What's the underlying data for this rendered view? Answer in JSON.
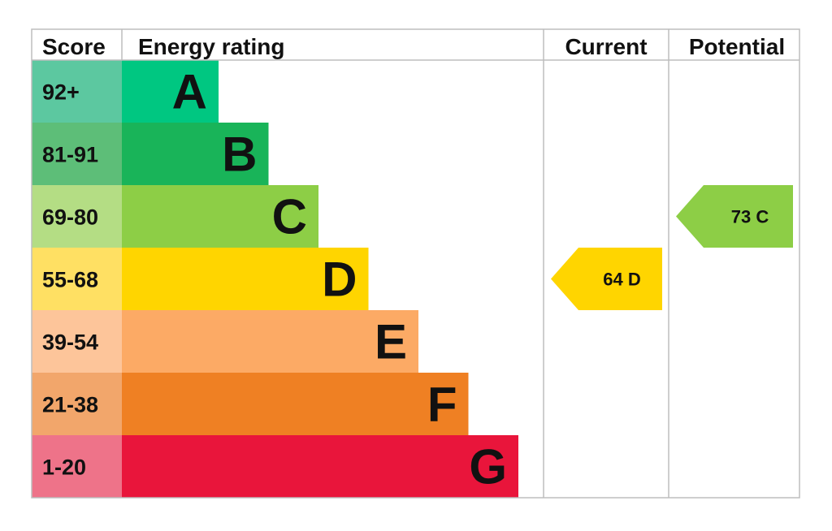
{
  "chart_data": {
    "type": "table",
    "headers": {
      "score": "Score",
      "rating": "Energy rating",
      "current": "Current",
      "potential": "Potential"
    },
    "bands": [
      {
        "letter": "A",
        "range": "92+",
        "color": "#00c781",
        "score_bg": "#5cc8a0"
      },
      {
        "letter": "B",
        "range": "81-91",
        "color": "#19b459",
        "score_bg": "#5dbe78"
      },
      {
        "letter": "C",
        "range": "69-80",
        "color": "#8dce46",
        "score_bg": "#b4dd84"
      },
      {
        "letter": "D",
        "range": "55-68",
        "color": "#ffd500",
        "score_bg": "#ffe063"
      },
      {
        "letter": "E",
        "range": "39-54",
        "color": "#fcaa65",
        "score_bg": "#fdc59a"
      },
      {
        "letter": "F",
        "range": "21-38",
        "color": "#ef8023",
        "score_bg": "#f2a66b"
      },
      {
        "letter": "G",
        "range": "1-20",
        "color": "#e9153b",
        "score_bg": "#ee7389"
      }
    ],
    "current": {
      "value": 64,
      "letter": "D",
      "label": "64  D",
      "color": "#ffd500"
    },
    "potential": {
      "value": 73,
      "letter": "C",
      "label": "73  C",
      "color": "#8dce46"
    },
    "colors": {
      "grid": "#bdbdbd",
      "text": "#111111"
    }
  }
}
